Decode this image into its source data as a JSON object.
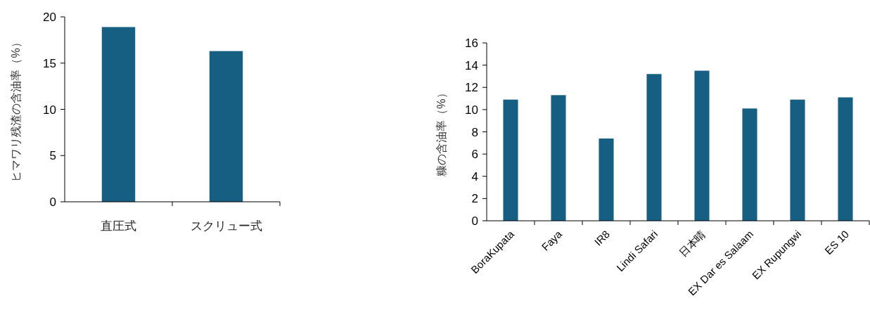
{
  "chart_data": [
    {
      "type": "bar",
      "ylabel": "ヒマワリ残渣の含油率（%）",
      "categories": [
        "直圧式",
        "スクリュー式"
      ],
      "values": [
        18.9,
        16.3
      ],
      "color": "#175f82",
      "ylim": [
        0,
        20
      ],
      "yticks": [
        0,
        5,
        10,
        15,
        20
      ]
    },
    {
      "type": "bar",
      "ylabel": "糠の含油率（%）",
      "categories": [
        "BoraKupata",
        "Faya",
        "IR8",
        "Lindi Safari",
        "日本晴",
        "EX Dar es Salaam",
        "EX Rupungwi",
        "ES 10"
      ],
      "values": [
        10.9,
        11.3,
        7.4,
        13.2,
        13.5,
        10.1,
        10.9,
        11.1
      ],
      "color": "#175f82",
      "ylim": [
        0,
        16
      ],
      "yticks": [
        0,
        2,
        4,
        6,
        8,
        10,
        12,
        14,
        16
      ]
    }
  ]
}
